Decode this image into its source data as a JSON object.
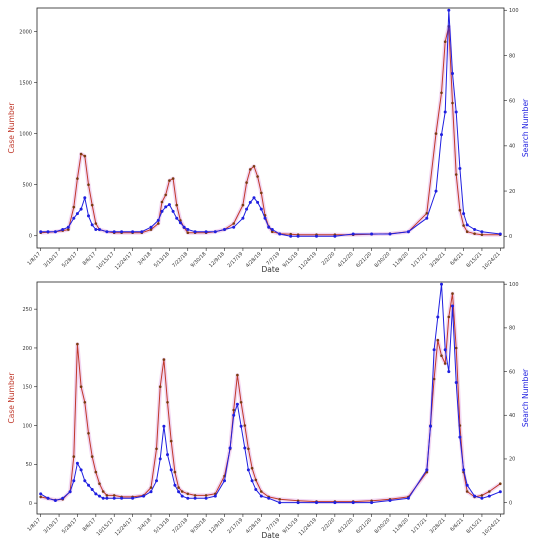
{
  "colors": {
    "case": "#c0392b",
    "search": "#1f1fe0",
    "case_marker": "#7a3b10",
    "band": "#e8b6e8",
    "frame": "#222222",
    "grid": "none"
  },
  "chart_data": [
    {
      "type": "line",
      "xlabel": "Date",
      "ylabel_left": "Case Number",
      "ylabel_right": "Search Number",
      "ylim_left": [
        -120,
        2230
      ],
      "ylim_right": [
        -5.2,
        101
      ],
      "yticks_left": [
        "0",
        "500",
        "1000",
        "1500",
        "2000"
      ],
      "yticks_right": [
        "0",
        "20",
        "40",
        "60",
        "80",
        "100"
      ],
      "x_tick_labels": [
        "1/8/17",
        "3/19/17",
        "5/28/17",
        "8/6/17",
        "10/15/17",
        "12/24/17",
        "3/4/18",
        "5/13/18",
        "7/22/18",
        "9/30/18",
        "12/9/18",
        "2/17/19",
        "4/28/19",
        "7/7/19",
        "9/15/19",
        "11/24/19",
        "2/2/20",
        "4/12/20",
        "6/21/20",
        "8/30/20",
        "11/8/20",
        "1/17/21",
        "3/28/21",
        "6/6/21",
        "8/15/21",
        "10/24/21"
      ],
      "series": [
        {
          "name": "Case Number",
          "axis": "left",
          "x": [
            0,
            4,
            8,
            12,
            15,
            18,
            20,
            22,
            24,
            26,
            28,
            30,
            32,
            36,
            40,
            44,
            50,
            55,
            60,
            64,
            66,
            68,
            70,
            72,
            74,
            76,
            78,
            80,
            84,
            90,
            95,
            100,
            105,
            110,
            112,
            114,
            116,
            118,
            120,
            122,
            124,
            126,
            130,
            136,
            140,
            150,
            160,
            170,
            180,
            190,
            200,
            210,
            215,
            218,
            220,
            222,
            224,
            226,
            228,
            230,
            232,
            236,
            240,
            250
          ],
          "values": [
            30,
            35,
            40,
            50,
            60,
            280,
            560,
            800,
            780,
            500,
            300,
            120,
            60,
            40,
            30,
            30,
            30,
            30,
            60,
            120,
            330,
            400,
            540,
            560,
            300,
            150,
            80,
            30,
            30,
            30,
            40,
            60,
            120,
            300,
            520,
            650,
            680,
            580,
            420,
            200,
            90,
            40,
            20,
            15,
            10,
            10,
            10,
            10,
            15,
            20,
            40,
            220,
            1000,
            1400,
            1900,
            2050,
            1300,
            600,
            250,
            100,
            40,
            20,
            10,
            10
          ]
        },
        {
          "name": "Search Number",
          "axis": "right",
          "x": [
            0,
            4,
            8,
            12,
            15,
            18,
            20,
            22,
            24,
            26,
            28,
            30,
            32,
            36,
            40,
            44,
            50,
            55,
            60,
            64,
            66,
            68,
            70,
            72,
            74,
            76,
            78,
            80,
            84,
            90,
            95,
            100,
            105,
            110,
            112,
            114,
            116,
            118,
            120,
            122,
            124,
            126,
            130,
            136,
            140,
            150,
            160,
            170,
            180,
            190,
            200,
            210,
            215,
            218,
            220,
            222,
            224,
            226,
            228,
            230,
            232,
            236,
            240,
            250
          ],
          "values": [
            2,
            2,
            2,
            3,
            4,
            8,
            10,
            12,
            17,
            9,
            5,
            3,
            3,
            2,
            2,
            2,
            2,
            2,
            4,
            7,
            11,
            13,
            14,
            11,
            8,
            6,
            4,
            3,
            2,
            2,
            2,
            3,
            4,
            8,
            12,
            15,
            17,
            15,
            12,
            8,
            4,
            3,
            1,
            0,
            0,
            0,
            0,
            1,
            1,
            1,
            2,
            8,
            20,
            45,
            55,
            100,
            72,
            55,
            30,
            10,
            5,
            3,
            2,
            1
          ]
        }
      ]
    },
    {
      "type": "line",
      "xlabel": "Date",
      "ylabel_left": "Case Number",
      "ylabel_right": "Search Number",
      "ylim_left": [
        -14,
        285
      ],
      "ylim_right": [
        -5.2,
        101
      ],
      "yticks_left": [
        "0",
        "50",
        "100",
        "150",
        "200",
        "250"
      ],
      "yticks_right": [
        "0",
        "20",
        "40",
        "60",
        "80",
        "100"
      ],
      "x_tick_labels": [
        "1/8/17",
        "3/19/17",
        "5/28/17",
        "8/6/17",
        "10/15/17",
        "12/24/17",
        "3/4/18",
        "5/13/18",
        "7/22/18",
        "9/30/18",
        "12/9/18",
        "2/17/19",
        "4/28/19",
        "7/7/19",
        "9/15/19",
        "11/24/19",
        "2/2/20",
        "4/12/20",
        "6/21/20",
        "8/30/20",
        "11/8/20",
        "1/17/21",
        "3/28/21",
        "6/6/21",
        "8/15/21",
        "10/24/21"
      ],
      "series": [
        {
          "name": "Case Number",
          "axis": "left",
          "x": [
            0,
            4,
            8,
            12,
            16,
            18,
            20,
            22,
            24,
            26,
            28,
            30,
            32,
            34,
            36,
            40,
            44,
            50,
            56,
            60,
            63,
            65,
            67,
            69,
            71,
            73,
            75,
            77,
            80,
            84,
            90,
            95,
            100,
            103,
            105,
            107,
            109,
            111,
            113,
            115,
            117,
            120,
            124,
            130,
            140,
            150,
            160,
            170,
            180,
            190,
            200,
            210,
            212,
            214,
            216,
            218,
            220,
            222,
            224,
            226,
            228,
            230,
            232,
            236,
            240,
            244,
            250
          ],
          "values": [
            8,
            6,
            4,
            5,
            15,
            60,
            205,
            150,
            130,
            90,
            60,
            40,
            25,
            15,
            10,
            10,
            8,
            8,
            10,
            20,
            70,
            150,
            185,
            130,
            80,
            40,
            20,
            15,
            12,
            10,
            10,
            12,
            35,
            70,
            120,
            165,
            130,
            100,
            70,
            45,
            30,
            15,
            8,
            5,
            3,
            2,
            2,
            2,
            3,
            5,
            8,
            40,
            100,
            160,
            210,
            190,
            180,
            240,
            270,
            200,
            100,
            40,
            15,
            8,
            10,
            15,
            25
          ]
        },
        {
          "name": "Search Number",
          "axis": "right",
          "x": [
            0,
            4,
            8,
            12,
            16,
            18,
            20,
            22,
            24,
            26,
            28,
            30,
            32,
            34,
            36,
            40,
            44,
            50,
            56,
            60,
            63,
            65,
            67,
            69,
            71,
            73,
            75,
            77,
            80,
            84,
            90,
            95,
            100,
            103,
            105,
            107,
            109,
            111,
            113,
            115,
            117,
            120,
            124,
            130,
            140,
            150,
            160,
            170,
            180,
            190,
            200,
            210,
            212,
            214,
            216,
            218,
            220,
            222,
            224,
            226,
            228,
            230,
            232,
            236,
            240,
            244,
            250
          ],
          "values": [
            4,
            2,
            1,
            2,
            5,
            10,
            18,
            15,
            10,
            8,
            6,
            4,
            3,
            2,
            2,
            2,
            2,
            2,
            3,
            5,
            10,
            20,
            35,
            22,
            15,
            8,
            5,
            3,
            2,
            2,
            2,
            3,
            10,
            25,
            40,
            45,
            35,
            25,
            15,
            10,
            6,
            3,
            2,
            0,
            0,
            0,
            0,
            0,
            0,
            1,
            2,
            15,
            35,
            70,
            85,
            100,
            70,
            60,
            90,
            55,
            30,
            15,
            8,
            3,
            2,
            3,
            5
          ]
        }
      ]
    }
  ]
}
